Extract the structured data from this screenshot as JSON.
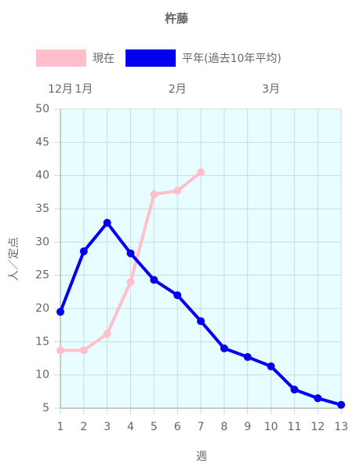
{
  "chart_data": {
    "type": "line",
    "title": "杵藤",
    "x": [
      1,
      2,
      3,
      4,
      5,
      6,
      7,
      8,
      9,
      10,
      11,
      12,
      13
    ],
    "x2_labels": [
      "12月",
      "1月",
      null,
      null,
      null,
      "2月",
      null,
      null,
      null,
      "3月",
      null,
      null,
      null
    ],
    "series": [
      {
        "name": "現在",
        "color": "#ffc0cb",
        "values": [
          13.7,
          13.7,
          16.2,
          24,
          37.2,
          37.7,
          40.5,
          null,
          null,
          null,
          null,
          null,
          null
        ]
      },
      {
        "name": "平年(過去10年平均)",
        "color": "#0000ee",
        "values": [
          19.5,
          28.6,
          32.9,
          28.3,
          24.3,
          22.0,
          18.1,
          14.0,
          12.7,
          11.3,
          7.8,
          6.5,
          5.5
        ]
      }
    ],
    "xlim": [
      1,
      13
    ],
    "xticks": [
      1,
      2,
      3,
      4,
      5,
      6,
      7,
      8,
      9,
      10,
      11,
      12,
      13
    ],
    "ylim": [
      5,
      50
    ],
    "yticks": [
      5,
      10,
      15,
      20,
      25,
      30,
      35,
      40,
      45,
      50
    ],
    "x_label": "週",
    "y_label": "人／定点",
    "grid": true,
    "plot_background": "#e8fdff"
  }
}
